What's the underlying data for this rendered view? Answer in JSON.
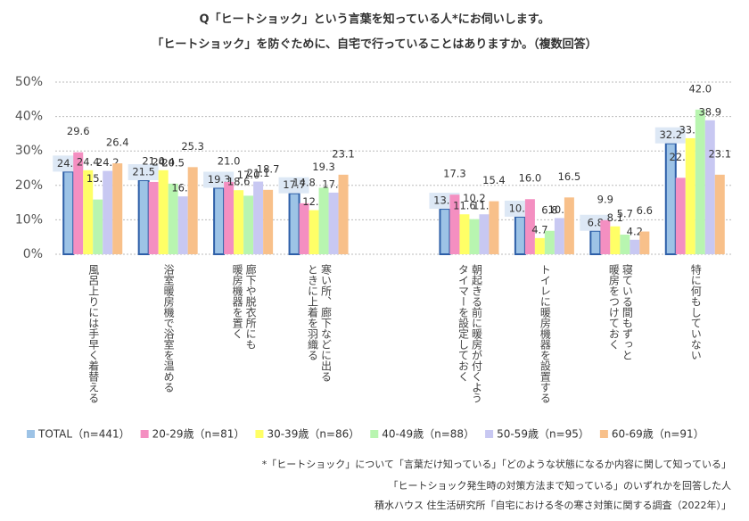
{
  "chart_data": {
    "type": "bar",
    "title": [
      "Q「ヒートショック」という言葉を知っている人*にお伺いします。",
      "「ヒートショック」を防ぐために、自宅で行っていることはありますか。（複数回答）"
    ],
    "categories": [
      "風呂上りには手早く着替える",
      "浴室暖房機で浴室を温める",
      "廊下や脱衣所にも\n暖房機器を置く",
      "寒い所、廊下などに出る\nときに上着を羽織る",
      null,
      "朝起きる前に暖房が付くよう\nタイマーを設定しておく",
      "トイレに暖房機器を設置する",
      "寝ている間もずっと\n暖房をつけておく",
      "特に何もしていない"
    ],
    "series": [
      {
        "name": "TOTAL（n=441）",
        "color": "#9dc3e6",
        "values": [
          24.0,
          21.5,
          19.3,
          17.7,
          null,
          13.2,
          10.9,
          6.8,
          32.2
        ],
        "value_labels": [
          "24.0",
          "21.5",
          "19.3",
          "17.7",
          null,
          "13.2",
          "10.9",
          "6.8",
          "32.2"
        ]
      },
      {
        "name": "20-29歳（n=81）",
        "color": "#f48fc1",
        "values": [
          29.6,
          21.0,
          21.0,
          14.8,
          null,
          17.3,
          16.0,
          9.9,
          22.2
        ],
        "value_labels": [
          "29.6",
          "21.0",
          "21.0",
          "14.8",
          null,
          "17.3",
          "16.0",
          "9.9",
          "22.2"
        ]
      },
      {
        "name": "30-39歳（n=86）",
        "color": "#ffff66",
        "values": [
          24.4,
          24.4,
          18.6,
          12.8,
          null,
          11.6,
          4.7,
          8.1,
          33.7
        ],
        "value_labels": [
          "24.4",
          "24.4",
          "18.6",
          "12.8",
          null,
          "11.6",
          "4.7",
          "8.1",
          "33.7"
        ]
      },
      {
        "name": "40-49歳（n=88）",
        "color": "#b8f5b0",
        "values": [
          15.9,
          20.5,
          17.0,
          19.3,
          null,
          10.2,
          6.8,
          5.7,
          42.0
        ],
        "value_labels": [
          "15.9",
          "20.5",
          "17.0",
          "19.3",
          null,
          "10.2",
          "6.8",
          "5.7",
          "42.0"
        ]
      },
      {
        "name": "50-59歳（n=95）",
        "color": "#c8c8f2",
        "values": [
          24.2,
          16.8,
          21.1,
          17.9,
          null,
          11.6,
          10.5,
          4.2,
          38.9
        ],
        "value_labels": [
          "24.2",
          "16.8",
          "21.1",
          "17.9",
          null,
          "11.6",
          "10.5",
          "4.2",
          "38.9"
        ]
      },
      {
        "name": "60-69歳（n=91）",
        "color": "#f8c08a",
        "values": [
          26.4,
          25.3,
          18.7,
          23.1,
          null,
          15.4,
          16.5,
          6.6,
          23.1
        ],
        "value_labels": [
          "26.4",
          "25.3",
          "18.7",
          "23.1",
          null,
          "15.4",
          "16.5",
          "6.6",
          "23.1"
        ]
      }
    ],
    "ylim": [
      0,
      50
    ],
    "yticks": [
      {
        "value": 0,
        "label": "0%"
      },
      {
        "value": 10,
        "label": "10%"
      },
      {
        "value": 20,
        "label": "20%"
      },
      {
        "value": 30,
        "label": "30%"
      },
      {
        "value": 40,
        "label": "40%"
      },
      {
        "value": 50,
        "label": "50%"
      }
    ],
    "grid": true,
    "notes": [
      "*「ヒートショック」について「言葉だけ知っている」「どのような状態になるか内容に関して知っている」",
      "「ヒートショック発生時の対策方法まで知っている」のいずれかを回答した人",
      "積水ハウス 住生活研究所「自宅における冬の寒さ対策に関する調査（2022年）」"
    ]
  }
}
